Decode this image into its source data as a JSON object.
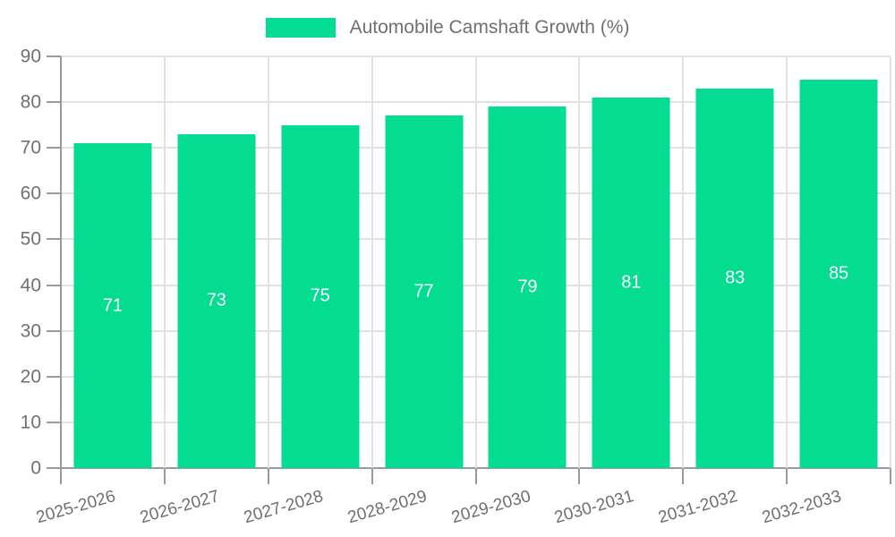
{
  "chart_data": {
    "type": "bar",
    "title": "Automobile Camshaft Growth (%)",
    "series": [
      {
        "name": "Automobile Camshaft Growth (%)",
        "values": [
          71,
          73,
          75,
          77,
          79,
          81,
          83,
          85
        ]
      }
    ],
    "categories": [
      "2025-2026",
      "2026-2027",
      "2027-2028",
      "2028-2029",
      "2029-2030",
      "2030-2031",
      "2031-2032",
      "2032-2033"
    ],
    "xlabel": "",
    "ylabel": "",
    "ylim": [
      0,
      90
    ],
    "yticks": [
      0,
      10,
      20,
      30,
      40,
      50,
      60,
      70,
      80,
      90
    ],
    "grid": true,
    "legend_position": "top-center",
    "value_labels": "centered inside bars",
    "colors": {
      "bar": "#03DC91",
      "value_label": "#ffffff",
      "axis_line": "#9a9a9a",
      "grid_line": "#e2e2e2",
      "text": "#707070"
    }
  }
}
